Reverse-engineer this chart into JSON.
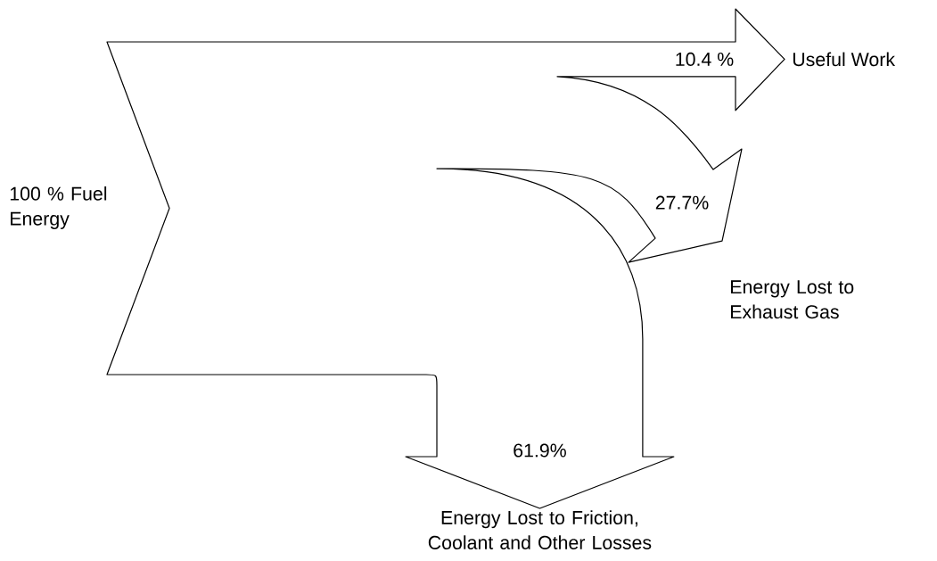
{
  "chart_data": {
    "type": "other",
    "categories": [
      "Useful Work",
      "Energy Lost to Exhaust Gas",
      "Energy Lost to Friction, Coolant and Other Losses"
    ],
    "values": [
      10.4,
      27.7,
      61.9
    ],
    "value_labels": [
      "10.4 %",
      "27.7%",
      "61.9%"
    ],
    "annotations": [
      "100 % Fuel Energy"
    ]
  }
}
